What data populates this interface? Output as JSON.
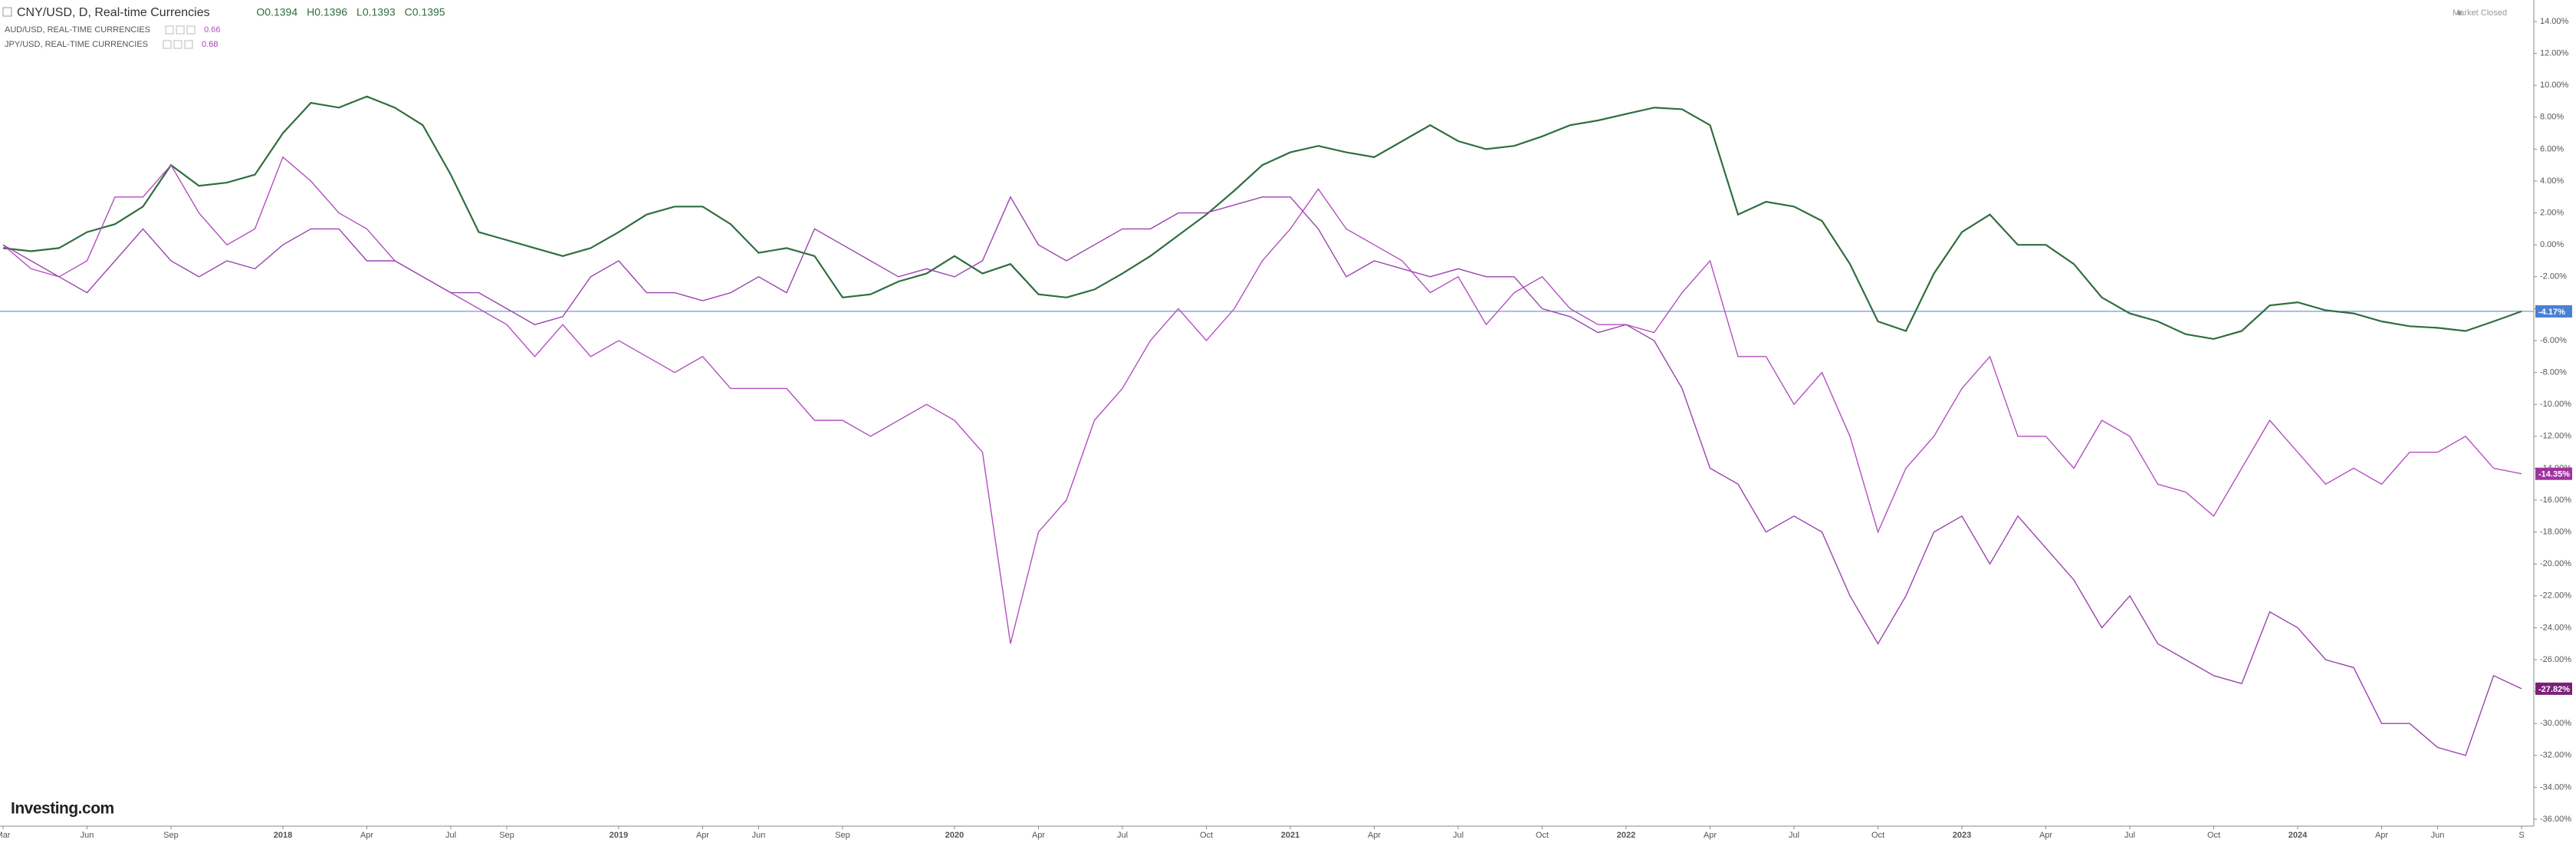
{
  "chart_data": {
    "type": "line",
    "title": "CNY/USD, D, Real-time Currencies",
    "ohlc": [
      {
        "value": 0.1394,
        "label": "O0.1394"
      },
      {
        "value": 0.1396,
        "label": "H0.1396"
      },
      {
        "value": 0.1393,
        "label": "L0.1393"
      },
      {
        "value": 0.1395,
        "label": "C0.1395"
      }
    ],
    "status": "Market Closed",
    "brand": "Investing.com",
    "x": [
      "2017-03",
      "2017-04",
      "2017-05",
      "2017-06",
      "2017-07",
      "2017-08",
      "2017-09",
      "2017-10",
      "2017-11",
      "2017-12",
      "2018-01",
      "2018-02",
      "2018-03",
      "2018-04",
      "2018-05",
      "2018-06",
      "2018-07",
      "2018-08",
      "2018-09",
      "2018-10",
      "2018-11",
      "2018-12",
      "2019-01",
      "2019-02",
      "2019-03",
      "2019-04",
      "2019-05",
      "2019-06",
      "2019-07",
      "2019-08",
      "2019-09",
      "2019-10",
      "2019-11",
      "2019-12",
      "2020-01",
      "2020-02",
      "2020-03",
      "2020-04",
      "2020-05",
      "2020-06",
      "2020-07",
      "2020-08",
      "2020-09",
      "2020-10",
      "2020-11",
      "2020-12",
      "2021-01",
      "2021-02",
      "2021-03",
      "2021-04",
      "2021-05",
      "2021-06",
      "2021-07",
      "2021-08",
      "2021-09",
      "2021-10",
      "2021-11",
      "2021-12",
      "2022-01",
      "2022-02",
      "2022-03",
      "2022-04",
      "2022-05",
      "2022-06",
      "2022-07",
      "2022-08",
      "2022-09",
      "2022-10",
      "2022-11",
      "2022-12",
      "2023-01",
      "2023-02",
      "2023-03",
      "2023-04",
      "2023-05",
      "2023-06",
      "2023-07",
      "2023-08",
      "2023-09",
      "2023-10",
      "2023-11",
      "2023-12",
      "2024-01",
      "2024-02",
      "2024-03",
      "2024-04",
      "2024-05",
      "2024-06",
      "2024-07",
      "2024-08",
      "2024-09"
    ],
    "xlim": [
      "2017-03",
      "2024-09"
    ],
    "xticks": [
      {
        "value": "2017-03",
        "label": "Mar"
      },
      {
        "value": "2017-06",
        "label": "Jun"
      },
      {
        "value": "2017-09",
        "label": "Sep"
      },
      {
        "value": "2018-01",
        "label": "2018"
      },
      {
        "value": "2018-04",
        "label": "Apr"
      },
      {
        "value": "2018-07",
        "label": "Jul"
      },
      {
        "value": "2018-09",
        "label": "Sep"
      },
      {
        "value": "2019-01",
        "label": "2019"
      },
      {
        "value": "2019-04",
        "label": "Apr"
      },
      {
        "value": "2019-06",
        "label": "Jun"
      },
      {
        "value": "2019-09",
        "label": "Sep"
      },
      {
        "value": "2020-01",
        "label": "2020"
      },
      {
        "value": "2020-04",
        "label": "Apr"
      },
      {
        "value": "2020-07",
        "label": "Jul"
      },
      {
        "value": "2020-10",
        "label": "Oct"
      },
      {
        "value": "2021-01",
        "label": "2021"
      },
      {
        "value": "2021-04",
        "label": "Apr"
      },
      {
        "value": "2021-07",
        "label": "Jul"
      },
      {
        "value": "2021-10",
        "label": "Oct"
      },
      {
        "value": "2022-01",
        "label": "2022"
      },
      {
        "value": "2022-04",
        "label": "Apr"
      },
      {
        "value": "2022-07",
        "label": "Jul"
      },
      {
        "value": "2022-10",
        "label": "Oct"
      },
      {
        "value": "2023-01",
        "label": "2023"
      },
      {
        "value": "2023-04",
        "label": "Apr"
      },
      {
        "value": "2023-07",
        "label": "Jul"
      },
      {
        "value": "2023-10",
        "label": "Oct"
      },
      {
        "value": "2024-01",
        "label": "2024"
      },
      {
        "value": "2024-04",
        "label": "Apr"
      },
      {
        "value": "2024-06",
        "label": "Jun"
      },
      {
        "value": "2024-09",
        "label": "S"
      }
    ],
    "ylim": [
      -36,
      14
    ],
    "yticks": [
      {
        "value": 14,
        "label": "14.00%"
      },
      {
        "value": 12,
        "label": "12.00%"
      },
      {
        "value": 10,
        "label": "10.00%"
      },
      {
        "value": 8,
        "label": "8.00%"
      },
      {
        "value": 6,
        "label": "6.00%"
      },
      {
        "value": 4,
        "label": "4.00%"
      },
      {
        "value": 2,
        "label": "2.00%"
      },
      {
        "value": 0,
        "label": "0.00%"
      },
      {
        "value": -2,
        "label": "-2.00%"
      },
      {
        "value": -4,
        "label": "-4.00%"
      },
      {
        "value": -6,
        "label": "-6.00%"
      },
      {
        "value": -8,
        "label": "-8.00%"
      },
      {
        "value": -10,
        "label": "-10.00%"
      },
      {
        "value": -12,
        "label": "-12.00%"
      },
      {
        "value": -14,
        "label": "-14.00%"
      },
      {
        "value": -16,
        "label": "-16.00%"
      },
      {
        "value": -18,
        "label": "-18.00%"
      },
      {
        "value": -20,
        "label": "-20.00%"
      },
      {
        "value": -22,
        "label": "-22.00%"
      },
      {
        "value": -24,
        "label": "-24.00%"
      },
      {
        "value": -26,
        "label": "-26.00%"
      },
      {
        "value": -28,
        "label": "-28.00%"
      },
      {
        "value": -30,
        "label": "-30.00%"
      },
      {
        "value": -32,
        "label": "-32.00%"
      },
      {
        "value": -34,
        "label": "-34.00%"
      },
      {
        "value": -36,
        "label": "-36.00%"
      }
    ],
    "price_line_color": "#4a7fd4",
    "series": [
      {
        "name": "CNY/USD, D, Real-time Currencies",
        "color": "#2f6e3f",
        "label_color": "#4a7fd4",
        "last_label": "-4.17%",
        "values": [
          -0.2,
          -0.4,
          -0.2,
          0.8,
          1.3,
          2.4,
          5.0,
          3.7,
          3.9,
          4.4,
          7.0,
          8.9,
          8.6,
          9.3,
          8.6,
          7.5,
          4.4,
          0.8,
          0.3,
          -0.2,
          -0.7,
          -0.2,
          0.8,
          1.9,
          2.4,
          2.4,
          1.3,
          -0.5,
          -0.2,
          -0.7,
          -3.3,
          -3.1,
          -2.3,
          -1.8,
          -0.7,
          -1.8,
          -1.2,
          -3.1,
          -3.3,
          -2.8,
          -1.8,
          -0.7,
          0.6,
          1.9,
          3.4,
          5.0,
          5.8,
          6.2,
          5.8,
          5.5,
          6.5,
          7.5,
          6.5,
          6.0,
          6.2,
          6.8,
          7.5,
          7.8,
          8.2,
          8.6,
          8.5,
          7.5,
          1.9,
          2.7,
          2.4,
          1.5,
          -1.2,
          -4.8,
          -5.4,
          -1.8,
          0.8,
          1.9,
          0,
          0,
          -1.2,
          -3.3,
          -4.3,
          -4.8,
          -5.6,
          -5.9,
          -5.4,
          -3.8,
          -3.6,
          -4.1,
          -4.3,
          -4.8,
          -5.1,
          -5.2,
          -5.4,
          -4.8,
          -4.17
        ]
      },
      {
        "name": "AUD/USD, REAL-TIME CURRENCIES",
        "price": 0.66,
        "color": "#b44fc0",
        "label_color": "#a0329f",
        "last_label": "-14.35%",
        "values": [
          0,
          -1.5,
          -2,
          -1,
          3,
          3,
          5,
          2,
          0,
          1,
          5.5,
          4,
          2,
          1,
          -1,
          -2,
          -3,
          -4,
          -5,
          -7,
          -5,
          -7,
          -6,
          -7,
          -8,
          -7,
          -9,
          -9,
          -9,
          -11,
          -11,
          -12,
          -11,
          -10,
          -11,
          -13,
          -25,
          -18,
          -16,
          -11,
          -9,
          -6,
          -4,
          -6,
          -4,
          -1,
          1,
          3.5,
          1,
          0,
          -1,
          -3,
          -2,
          -5,
          -3,
          -2,
          -4,
          -5,
          -5,
          -5.5,
          -3,
          -1,
          -7,
          -7,
          -10,
          -8,
          -12,
          -18,
          -14,
          -12,
          -9,
          -7,
          -12,
          -12,
          -14,
          -11,
          -12,
          -15,
          -15.5,
          -17,
          -14,
          -11,
          -13,
          -15,
          -14,
          -15,
          -13,
          -13,
          -12,
          -14,
          -14.35
        ]
      },
      {
        "name": "JPY/USD, REAL-TIME CURRENCIES",
        "price": 0.68,
        "color": "#9a44ad",
        "label_color": "#7d1f7a",
        "last_label": "-27.82%",
        "values": [
          0,
          -1,
          -2,
          -3,
          -1,
          1,
          -1,
          -2,
          -1,
          -1.5,
          0,
          1,
          1,
          -1,
          -1,
          -2,
          -3,
          -3,
          -4,
          -5,
          -4.5,
          -2,
          -1,
          -3,
          -3,
          -3.5,
          -3,
          -2,
          -3,
          1,
          0,
          -1,
          -2,
          -1.5,
          -2,
          -1,
          3,
          0,
          -1,
          0,
          1,
          1,
          2,
          2,
          2.5,
          3,
          3,
          1,
          -2,
          -1,
          -1.5,
          -2,
          -1.5,
          -2,
          -2,
          -4,
          -4.5,
          -5.5,
          -5,
          -6,
          -9,
          -14,
          -15,
          -18,
          -17,
          -18,
          -22,
          -25,
          -22,
          -18,
          -17,
          -20,
          -17,
          -19,
          -21,
          -24,
          -22,
          -25,
          -26,
          -27,
          -27.5,
          -23,
          -24,
          -26,
          -26.5,
          -30,
          -30,
          -31.5,
          -32,
          -27,
          -27.82
        ]
      }
    ]
  }
}
